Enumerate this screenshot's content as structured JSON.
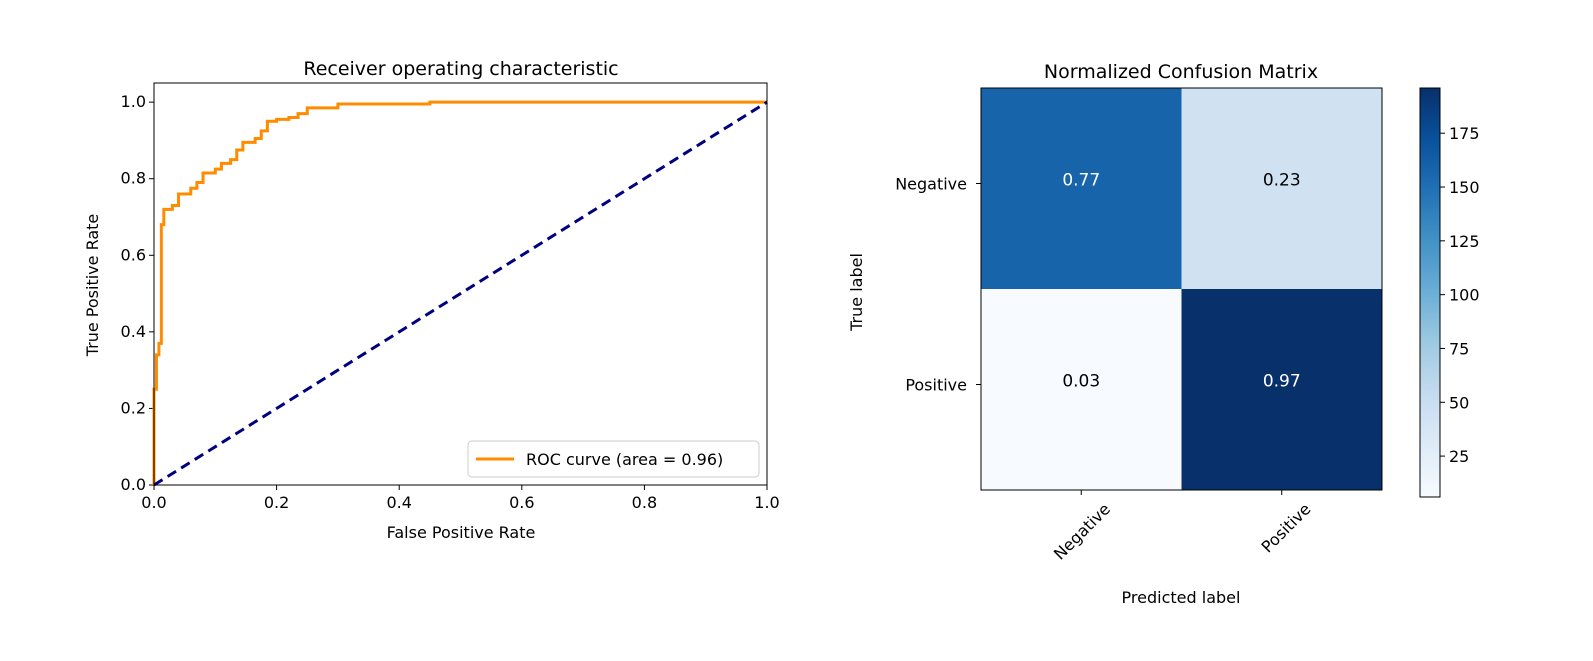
{
  "chart_data": [
    {
      "type": "line",
      "title": "Receiver operating characteristic",
      "xlabel": "False Positive Rate",
      "ylabel": "True Positive Rate",
      "xlim": [
        0.0,
        1.0
      ],
      "ylim": [
        0.0,
        1.05
      ],
      "xticks": [
        "0.0",
        "0.2",
        "0.4",
        "0.6",
        "0.8",
        "1.0"
      ],
      "yticks": [
        "0.0",
        "0.2",
        "0.4",
        "0.6",
        "0.8",
        "1.0"
      ],
      "legend_position": "lower-right",
      "series": [
        {
          "name": "ROC curve (area = 0.96)",
          "color": "#ff8c00",
          "style": "solid",
          "x": [
            0.0,
            0.0,
            0.004,
            0.004,
            0.008,
            0.008,
            0.012,
            0.012,
            0.016,
            0.016,
            0.03,
            0.03,
            0.04,
            0.04,
            0.06,
            0.06,
            0.07,
            0.07,
            0.08,
            0.08,
            0.1,
            0.1,
            0.11,
            0.11,
            0.125,
            0.125,
            0.135,
            0.135,
            0.145,
            0.145,
            0.165,
            0.165,
            0.175,
            0.175,
            0.185,
            0.185,
            0.2,
            0.2,
            0.22,
            0.22,
            0.235,
            0.235,
            0.25,
            0.25,
            0.3,
            0.3,
            0.45,
            0.45,
            1.0
          ],
          "y": [
            0.0,
            0.25,
            0.25,
            0.34,
            0.34,
            0.37,
            0.37,
            0.68,
            0.68,
            0.72,
            0.72,
            0.73,
            0.73,
            0.76,
            0.76,
            0.775,
            0.775,
            0.79,
            0.79,
            0.815,
            0.815,
            0.825,
            0.825,
            0.84,
            0.84,
            0.85,
            0.85,
            0.875,
            0.875,
            0.895,
            0.895,
            0.905,
            0.905,
            0.925,
            0.925,
            0.95,
            0.95,
            0.955,
            0.955,
            0.96,
            0.96,
            0.97,
            0.97,
            0.985,
            0.985,
            0.995,
            0.995,
            1.0,
            1.0
          ]
        },
        {
          "name": "",
          "color": "#000080",
          "style": "dashed",
          "x": [
            0.0,
            1.0
          ],
          "y": [
            0.0,
            1.0
          ]
        }
      ]
    },
    {
      "type": "heatmap",
      "title": "Normalized Confusion Matrix",
      "xlabel": "Predicted label",
      "ylabel": "True label",
      "x_categories": [
        "Negative",
        "Positive"
      ],
      "y_categories": [
        "Negative",
        "Positive"
      ],
      "values": [
        [
          0.77,
          0.23
        ],
        [
          0.03,
          0.97
        ]
      ],
      "cell_labels": [
        [
          "0.77",
          "0.23"
        ],
        [
          "0.03",
          "0.97"
        ]
      ],
      "cell_colors": [
        [
          "#1764ab",
          "#d0e1f2"
        ],
        [
          "#f7fbff",
          "#08306b"
        ]
      ],
      "colorbar": {
        "colormap": "Blues",
        "range": [
          6,
          196
        ],
        "ticks": [
          "25",
          "50",
          "75",
          "100",
          "125",
          "150",
          "175"
        ]
      }
    }
  ]
}
